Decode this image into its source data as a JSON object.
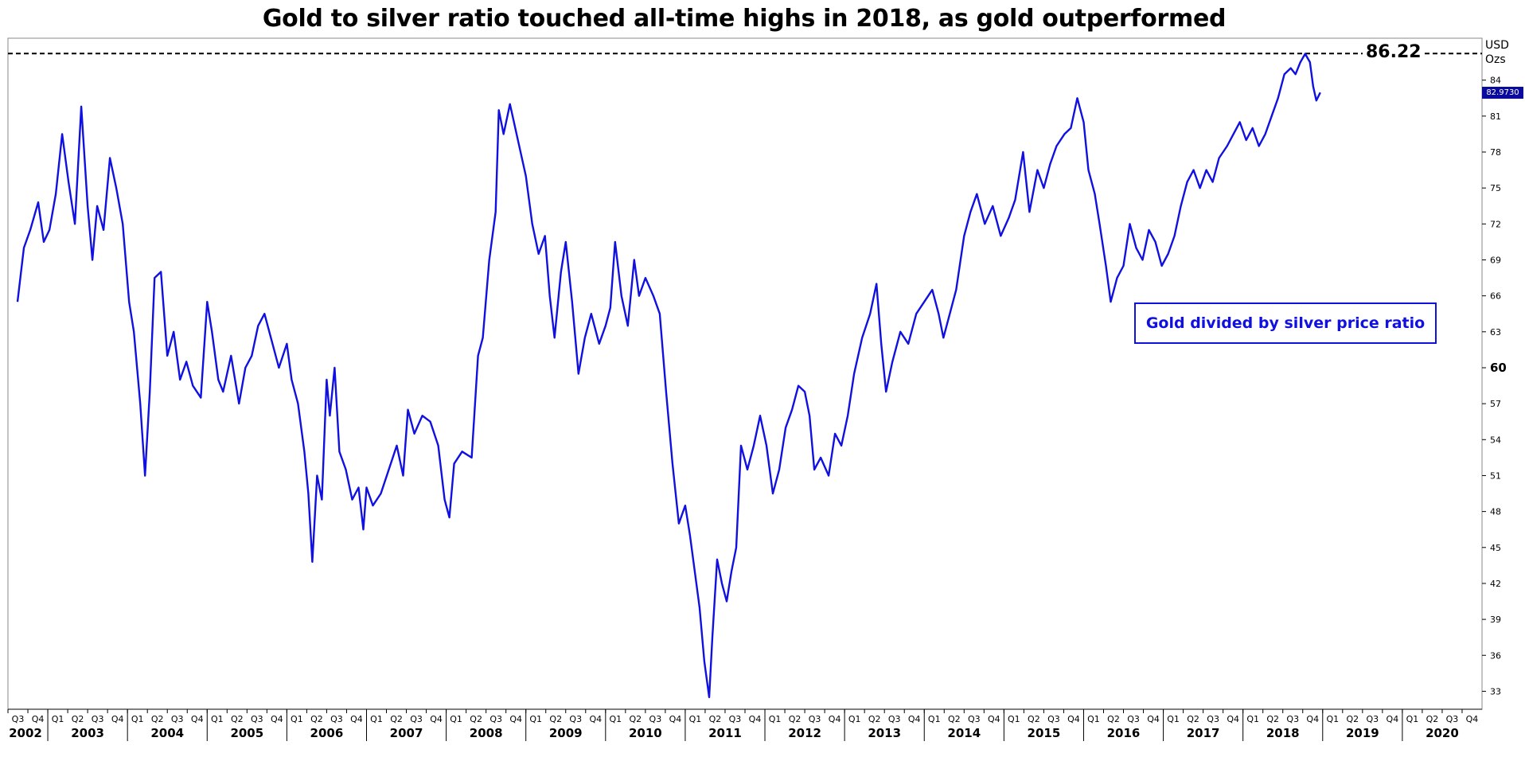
{
  "chart_data": {
    "type": "line",
    "title": "Gold to silver ratio touched all-time highs in 2018, as gold outperformed",
    "unit_label": [
      "USD",
      "Ozs"
    ],
    "series": [
      {
        "name": "Gold divided by silver price ratio",
        "color": "#1010e0",
        "points": [
          [
            2002.62,
            65.5
          ],
          [
            2002.7,
            70.0
          ],
          [
            2002.78,
            71.5
          ],
          [
            2002.88,
            73.8
          ],
          [
            2002.95,
            70.5
          ],
          [
            2003.02,
            71.5
          ],
          [
            2003.1,
            74.5
          ],
          [
            2003.18,
            79.5
          ],
          [
            2003.26,
            75.5
          ],
          [
            2003.34,
            72.0
          ],
          [
            2003.42,
            81.8
          ],
          [
            2003.5,
            73.5
          ],
          [
            2003.56,
            69.0
          ],
          [
            2003.62,
            73.5
          ],
          [
            2003.7,
            71.5
          ],
          [
            2003.78,
            77.5
          ],
          [
            2003.86,
            75.0
          ],
          [
            2003.94,
            72.0
          ],
          [
            2004.02,
            65.5
          ],
          [
            2004.08,
            63.0
          ],
          [
            2004.16,
            57.0
          ],
          [
            2004.22,
            51.0
          ],
          [
            2004.28,
            58.0
          ],
          [
            2004.34,
            67.5
          ],
          [
            2004.42,
            68.0
          ],
          [
            2004.5,
            61.0
          ],
          [
            2004.58,
            63.0
          ],
          [
            2004.66,
            59.0
          ],
          [
            2004.74,
            60.5
          ],
          [
            2004.82,
            58.5
          ],
          [
            2004.92,
            57.5
          ],
          [
            2005.0,
            65.5
          ],
          [
            2005.06,
            63.0
          ],
          [
            2005.14,
            59.0
          ],
          [
            2005.2,
            58.0
          ],
          [
            2005.3,
            61.0
          ],
          [
            2005.4,
            57.0
          ],
          [
            2005.48,
            60.0
          ],
          [
            2005.56,
            61.0
          ],
          [
            2005.64,
            63.5
          ],
          [
            2005.72,
            64.5
          ],
          [
            2005.82,
            62.0
          ],
          [
            2005.9,
            60.0
          ],
          [
            2006.0,
            62.0
          ],
          [
            2006.06,
            59.0
          ],
          [
            2006.14,
            57.0
          ],
          [
            2006.22,
            53.0
          ],
          [
            2006.27,
            49.5
          ],
          [
            2006.32,
            43.8
          ],
          [
            2006.38,
            51.0
          ],
          [
            2006.44,
            49.0
          ],
          [
            2006.5,
            59.0
          ],
          [
            2006.54,
            56.0
          ],
          [
            2006.6,
            60.0
          ],
          [
            2006.66,
            53.0
          ],
          [
            2006.74,
            51.5
          ],
          [
            2006.82,
            49.0
          ],
          [
            2006.9,
            50.0
          ],
          [
            2006.96,
            46.5
          ],
          [
            2007.0,
            50.0
          ],
          [
            2007.08,
            48.5
          ],
          [
            2007.18,
            49.5
          ],
          [
            2007.28,
            51.5
          ],
          [
            2007.38,
            53.5
          ],
          [
            2007.46,
            51.0
          ],
          [
            2007.52,
            56.5
          ],
          [
            2007.6,
            54.5
          ],
          [
            2007.7,
            56.0
          ],
          [
            2007.8,
            55.5
          ],
          [
            2007.9,
            53.5
          ],
          [
            2007.98,
            49.0
          ],
          [
            2008.04,
            47.5
          ],
          [
            2008.1,
            52.0
          ],
          [
            2008.2,
            53.0
          ],
          [
            2008.32,
            52.5
          ],
          [
            2008.4,
            61.0
          ],
          [
            2008.46,
            62.5
          ],
          [
            2008.54,
            69.0
          ],
          [
            2008.62,
            73.0
          ],
          [
            2008.66,
            81.5
          ],
          [
            2008.72,
            79.5
          ],
          [
            2008.8,
            82.0
          ],
          [
            2008.9,
            79.0
          ],
          [
            2009.0,
            76.0
          ],
          [
            2009.08,
            72.0
          ],
          [
            2009.16,
            69.5
          ],
          [
            2009.24,
            71.0
          ],
          [
            2009.3,
            66.0
          ],
          [
            2009.36,
            62.5
          ],
          [
            2009.44,
            68.0
          ],
          [
            2009.5,
            70.5
          ],
          [
            2009.58,
            65.5
          ],
          [
            2009.66,
            59.5
          ],
          [
            2009.74,
            62.5
          ],
          [
            2009.82,
            64.5
          ],
          [
            2009.92,
            62.0
          ],
          [
            2010.0,
            63.5
          ],
          [
            2010.06,
            65.0
          ],
          [
            2010.12,
            70.5
          ],
          [
            2010.2,
            66.0
          ],
          [
            2010.28,
            63.5
          ],
          [
            2010.36,
            69.0
          ],
          [
            2010.42,
            66.0
          ],
          [
            2010.5,
            67.5
          ],
          [
            2010.6,
            66.0
          ],
          [
            2010.68,
            64.5
          ],
          [
            2010.76,
            58.0
          ],
          [
            2010.84,
            52.0
          ],
          [
            2010.92,
            47.0
          ],
          [
            2011.0,
            48.5
          ],
          [
            2011.06,
            46.0
          ],
          [
            2011.12,
            43.0
          ],
          [
            2011.18,
            40.0
          ],
          [
            2011.24,
            35.5
          ],
          [
            2011.3,
            32.5
          ],
          [
            2011.34,
            37.5
          ],
          [
            2011.4,
            44.0
          ],
          [
            2011.46,
            42.0
          ],
          [
            2011.52,
            40.5
          ],
          [
            2011.58,
            43.0
          ],
          [
            2011.64,
            45.0
          ],
          [
            2011.7,
            53.5
          ],
          [
            2011.78,
            51.5
          ],
          [
            2011.86,
            53.5
          ],
          [
            2011.94,
            56.0
          ],
          [
            2012.02,
            53.5
          ],
          [
            2012.1,
            49.5
          ],
          [
            2012.18,
            51.5
          ],
          [
            2012.26,
            55.0
          ],
          [
            2012.34,
            56.5
          ],
          [
            2012.42,
            58.5
          ],
          [
            2012.5,
            58.0
          ],
          [
            2012.56,
            56.0
          ],
          [
            2012.62,
            51.5
          ],
          [
            2012.7,
            52.5
          ],
          [
            2012.8,
            51.0
          ],
          [
            2012.88,
            54.5
          ],
          [
            2012.96,
            53.5
          ],
          [
            2013.04,
            56.0
          ],
          [
            2013.12,
            59.5
          ],
          [
            2013.22,
            62.5
          ],
          [
            2013.32,
            64.5
          ],
          [
            2013.4,
            67.0
          ],
          [
            2013.46,
            62.0
          ],
          [
            2013.52,
            58.0
          ],
          [
            2013.6,
            60.5
          ],
          [
            2013.7,
            63.0
          ],
          [
            2013.8,
            62.0
          ],
          [
            2013.9,
            64.5
          ],
          [
            2014.0,
            65.5
          ],
          [
            2014.1,
            66.5
          ],
          [
            2014.18,
            64.5
          ],
          [
            2014.24,
            62.5
          ],
          [
            2014.3,
            64.0
          ],
          [
            2014.4,
            66.5
          ],
          [
            2014.5,
            71.0
          ],
          [
            2014.58,
            73.0
          ],
          [
            2014.66,
            74.5
          ],
          [
            2014.76,
            72.0
          ],
          [
            2014.86,
            73.5
          ],
          [
            2014.96,
            71.0
          ],
          [
            2015.06,
            72.5
          ],
          [
            2015.14,
            74.0
          ],
          [
            2015.24,
            78.0
          ],
          [
            2015.32,
            73.0
          ],
          [
            2015.42,
            76.5
          ],
          [
            2015.5,
            75.0
          ],
          [
            2015.58,
            77.0
          ],
          [
            2015.66,
            78.5
          ],
          [
            2015.76,
            79.5
          ],
          [
            2015.84,
            80.0
          ],
          [
            2015.92,
            82.5
          ],
          [
            2016.0,
            80.5
          ],
          [
            2016.06,
            76.5
          ],
          [
            2016.14,
            74.5
          ],
          [
            2016.2,
            72.0
          ],
          [
            2016.28,
            68.5
          ],
          [
            2016.34,
            65.5
          ],
          [
            2016.42,
            67.5
          ],
          [
            2016.5,
            68.5
          ],
          [
            2016.58,
            72.0
          ],
          [
            2016.66,
            70.0
          ],
          [
            2016.74,
            69.0
          ],
          [
            2016.82,
            71.5
          ],
          [
            2016.9,
            70.5
          ],
          [
            2016.98,
            68.5
          ],
          [
            2017.06,
            69.5
          ],
          [
            2017.14,
            71.0
          ],
          [
            2017.22,
            73.5
          ],
          [
            2017.3,
            75.5
          ],
          [
            2017.38,
            76.5
          ],
          [
            2017.46,
            75.0
          ],
          [
            2017.54,
            76.5
          ],
          [
            2017.62,
            75.5
          ],
          [
            2017.7,
            77.5
          ],
          [
            2017.8,
            78.5
          ],
          [
            2017.88,
            79.5
          ],
          [
            2017.96,
            80.5
          ],
          [
            2018.04,
            79.0
          ],
          [
            2018.12,
            80.0
          ],
          [
            2018.2,
            78.5
          ],
          [
            2018.28,
            79.5
          ],
          [
            2018.36,
            81.0
          ],
          [
            2018.44,
            82.5
          ],
          [
            2018.52,
            84.5
          ],
          [
            2018.6,
            85.0
          ],
          [
            2018.66,
            84.5
          ],
          [
            2018.72,
            85.5
          ],
          [
            2018.78,
            86.2
          ],
          [
            2018.84,
            85.5
          ],
          [
            2018.88,
            83.5
          ],
          [
            2018.92,
            82.3
          ],
          [
            2018.97,
            82.97
          ]
        ]
      }
    ],
    "y_axis": {
      "ticks": [
        33,
        36,
        39,
        42,
        45,
        48,
        51,
        54,
        57,
        60,
        63,
        66,
        69,
        72,
        75,
        78,
        81,
        84
      ],
      "bold_tick": 60,
      "ylim": [
        31.5,
        87.5
      ],
      "position": "right"
    },
    "x_axis": {
      "xlim": [
        2002.5,
        2021.0
      ],
      "quarter_labels": [
        "Q1",
        "Q2",
        "Q3",
        "Q4"
      ],
      "years": [
        "2002",
        "2003",
        "2004",
        "2005",
        "2006",
        "2007",
        "2008",
        "2009",
        "2010",
        "2011",
        "2012",
        "2013",
        "2014",
        "2015",
        "2016",
        "2017",
        "2018",
        "2019",
        "2020"
      ]
    },
    "annotations": {
      "high_value": 86.22,
      "high_label": "86.22",
      "last_value": 82.97,
      "last_label": "82.9730",
      "legend_text": "Gold divided by silver price ratio"
    },
    "grid": false,
    "legend_placement": "inside-right"
  }
}
